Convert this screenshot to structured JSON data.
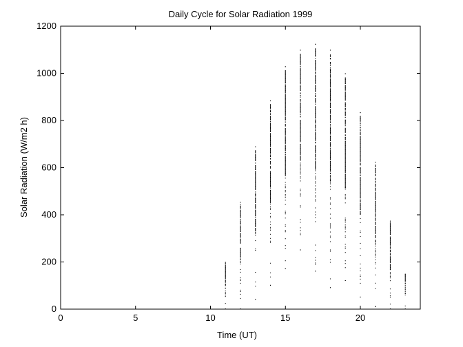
{
  "chart_data": {
    "type": "scatter",
    "title": "Daily Cycle for Solar Radiation 1999",
    "xlabel": "Time (UT)",
    "ylabel": "Solar Radiation (W/m2 h)",
    "xlim": [
      0,
      24
    ],
    "ylim": [
      0,
      1200
    ],
    "xticks": [
      0,
      5,
      10,
      15,
      20
    ],
    "yticks": [
      0,
      200,
      400,
      600,
      800,
      1000,
      1200
    ],
    "grid": false,
    "marker_color": "#000000",
    "hourly_ranges": [
      {
        "x": 11,
        "min": 0,
        "max": 200
      },
      {
        "x": 12,
        "min": 0,
        "max": 455
      },
      {
        "x": 13,
        "min": 40,
        "max": 690
      },
      {
        "x": 14,
        "min": 100,
        "max": 885
      },
      {
        "x": 15,
        "min": 170,
        "max": 1030
      },
      {
        "x": 16,
        "min": 250,
        "max": 1100
      },
      {
        "x": 17,
        "min": 160,
        "max": 1125
      },
      {
        "x": 18,
        "min": 90,
        "max": 1100
      },
      {
        "x": 19,
        "min": 120,
        "max": 1000
      },
      {
        "x": 20,
        "min": 50,
        "max": 835
      },
      {
        "x": 21,
        "min": 10,
        "max": 625
      },
      {
        "x": 22,
        "min": 0,
        "max": 375
      },
      {
        "x": 23,
        "min": 0,
        "max": 150
      }
    ]
  }
}
